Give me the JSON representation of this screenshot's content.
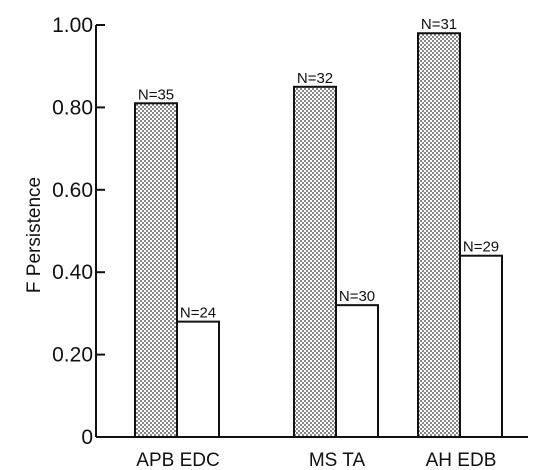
{
  "chart_data": {
    "type": "bar",
    "title": "",
    "xlabel": "",
    "ylabel": "F  Persistence",
    "ylim": [
      0,
      1.0
    ],
    "yticks": [
      0,
      0.2,
      0.4,
      0.6,
      0.8,
      1.0
    ],
    "ytick_labels": [
      "0",
      "0.20",
      "0.40",
      "0.60",
      "0.80",
      "1.00"
    ],
    "grid": false,
    "legend": "none",
    "categories": [
      "APB EDC",
      "MS TA",
      "AH EDB"
    ],
    "series": [
      {
        "pattern": "stippled",
        "values": [
          0.81,
          0.85,
          0.98
        ],
        "labels": [
          "N=35",
          "N=32",
          "N=31"
        ]
      },
      {
        "pattern": "open",
        "values": [
          0.28,
          0.32,
          0.44
        ],
        "labels": [
          "N=24",
          "N=30",
          "N=29"
        ]
      }
    ],
    "colors": {
      "ink": "#111111",
      "fill_stipple": "#c8c8c8",
      "fill_open": "#ffffff"
    }
  }
}
